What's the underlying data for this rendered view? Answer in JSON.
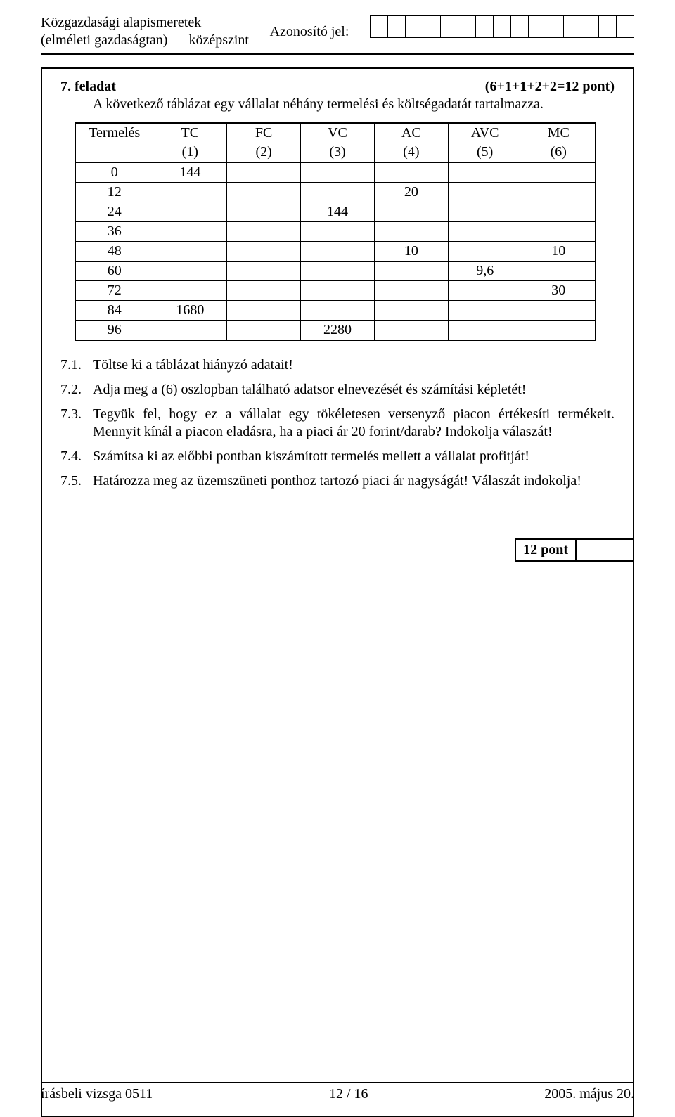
{
  "header": {
    "left_line1": "Közgazdasági alapismeretek",
    "left_line2": "(elméleti gazdaságtan) — középszint",
    "id_label": "Azonosító jel:",
    "id_cell_count": 15
  },
  "task": {
    "number": "7. feladat",
    "points": "(6+1+1+2+2=12 pont)",
    "description": "A következő táblázat egy vállalat néhány termelési és költségadatát tartalmazza."
  },
  "table": {
    "columns": [
      {
        "label": "Termelés",
        "sub": ""
      },
      {
        "label": "TC",
        "sub": "(1)"
      },
      {
        "label": "FC",
        "sub": "(2)"
      },
      {
        "label": "VC",
        "sub": "(3)"
      },
      {
        "label": "AC",
        "sub": "(4)"
      },
      {
        "label": "AVC",
        "sub": "(5)"
      },
      {
        "label": "MC",
        "sub": "(6)"
      }
    ],
    "rows": [
      [
        "0",
        "144",
        "",
        "",
        "",
        "",
        ""
      ],
      [
        "12",
        "",
        "",
        "",
        "20",
        "",
        ""
      ],
      [
        "24",
        "",
        "",
        "144",
        "",
        "",
        ""
      ],
      [
        "36",
        "",
        "",
        "",
        "",
        "",
        ""
      ],
      [
        "48",
        "",
        "",
        "",
        "10",
        "",
        "10"
      ],
      [
        "60",
        "",
        "",
        "",
        "",
        "9,6",
        ""
      ],
      [
        "72",
        "",
        "",
        "",
        "",
        "",
        "30"
      ],
      [
        "84",
        "1680",
        "",
        "",
        "",
        "",
        ""
      ],
      [
        "96",
        "",
        "",
        "2280",
        "",
        "",
        ""
      ]
    ],
    "col_widths": [
      "110px",
      "104px",
      "104px",
      "104px",
      "104px",
      "104px",
      "104px"
    ]
  },
  "questions": [
    {
      "num": "7.1.",
      "text": "Töltse ki a táblázat hiányzó adatait!"
    },
    {
      "num": "7.2.",
      "text": "Adja meg a (6) oszlopban található adatsor elnevezését és számítási képletét!"
    },
    {
      "num": "7.3.",
      "text": "Tegyük fel, hogy ez a vállalat egy tökéletesen versenyző piacon értékesíti termékeit. Mennyit kínál a piacon eladásra, ha a piaci ár 20 forint/darab? Indokolja válaszát!"
    },
    {
      "num": "7.4.",
      "text": "Számítsa ki az előbbi pontban kiszámított termelés mellett a vállalat profitját!"
    },
    {
      "num": "7.5.",
      "text": "Határozza meg az üzemszüneti ponthoz tartozó piaci ár nagyságát! Válaszát indokolja!"
    }
  ],
  "score": {
    "label": "12 pont"
  },
  "footer": {
    "left": "írásbeli vizsga 0511",
    "center": "12 / 16",
    "right": "2005. május 20."
  }
}
